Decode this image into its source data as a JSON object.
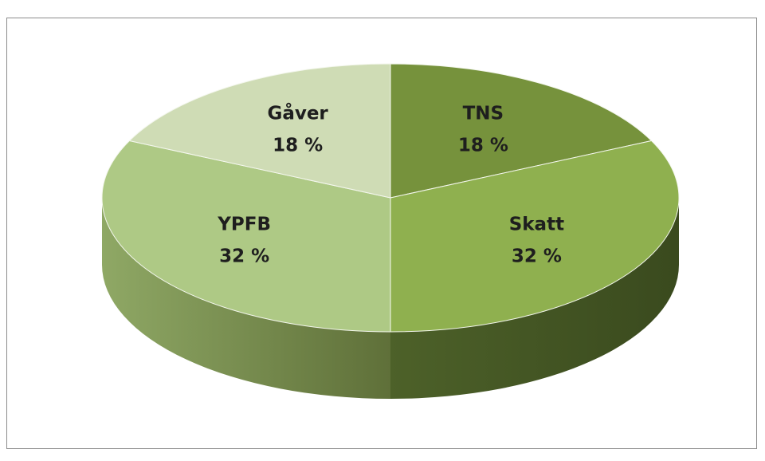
{
  "chart_data": {
    "type": "pie",
    "categories": [
      "TNS",
      "Skatt",
      "YPFB",
      "Gåver"
    ],
    "values": [
      18,
      32,
      32,
      18
    ],
    "value_labels": [
      "18 %",
      "32 %",
      "32 %",
      "18 %"
    ],
    "colors": [
      "#76923c",
      "#8fb04f",
      "#aec985",
      "#cfdcb5"
    ]
  }
}
